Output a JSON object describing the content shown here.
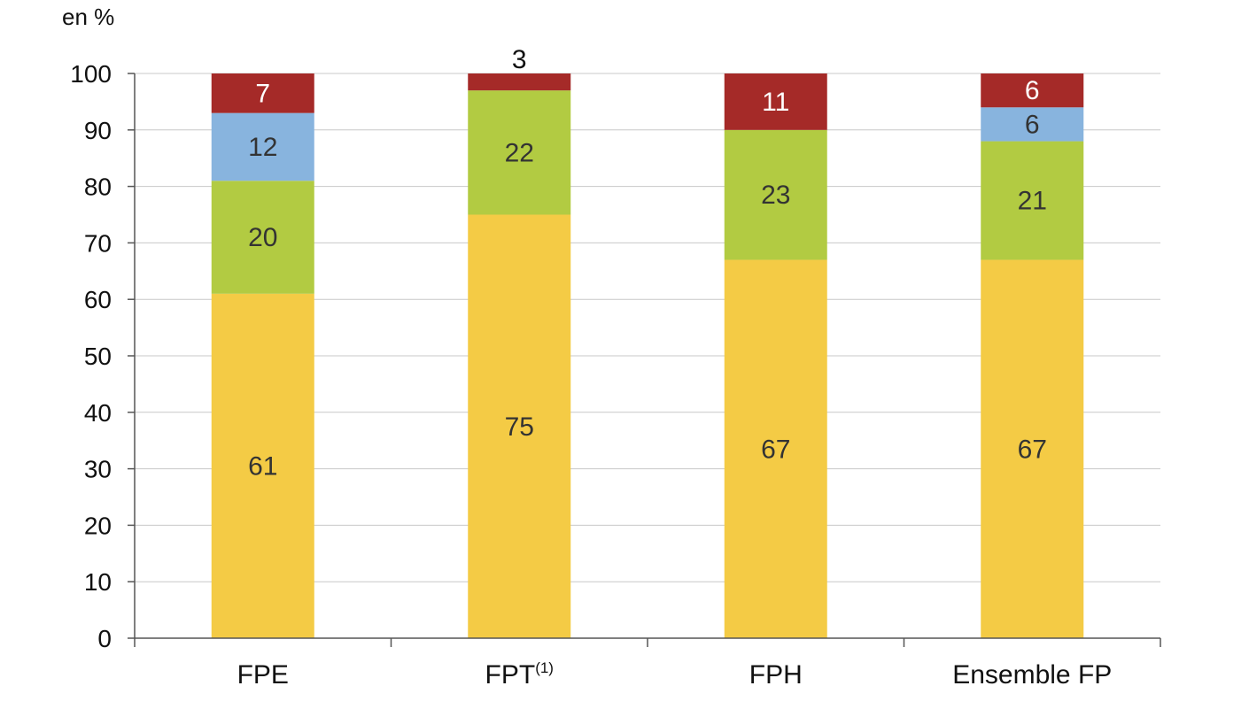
{
  "chart_data": {
    "type": "bar",
    "stacked": true,
    "unit_label": "en %",
    "categories": [
      {
        "label": "FPE",
        "superscript": ""
      },
      {
        "label": "FPT",
        "superscript": "(1)"
      },
      {
        "label": "FPH",
        "superscript": ""
      },
      {
        "label": "Ensemble FP",
        "superscript": ""
      }
    ],
    "series": [
      {
        "color": "#f4cb45",
        "label_color": "#333333",
        "values": [
          61,
          75,
          67,
          67
        ],
        "labels": [
          "61",
          "75",
          "67",
          "67"
        ]
      },
      {
        "color": "#b2cb42",
        "label_color": "#333333",
        "values": [
          20,
          22,
          23,
          21
        ],
        "labels": [
          "20",
          "22",
          "23",
          "21"
        ]
      },
      {
        "color": "#88b4de",
        "label_color": "#333333",
        "values": [
          12,
          0,
          0,
          6
        ],
        "labels": [
          "12",
          "",
          "",
          "6"
        ]
      },
      {
        "color": "#a52a28",
        "label_color": "#ffffff",
        "values": [
          7,
          3,
          11,
          6
        ],
        "labels": [
          "7",
          "3",
          "11",
          "6"
        ]
      }
    ],
    "ylim": [
      0,
      100
    ],
    "yticks": [
      0,
      10,
      20,
      30,
      40,
      50,
      60,
      70,
      80,
      90,
      100
    ],
    "grid": true,
    "legend": "none"
  }
}
